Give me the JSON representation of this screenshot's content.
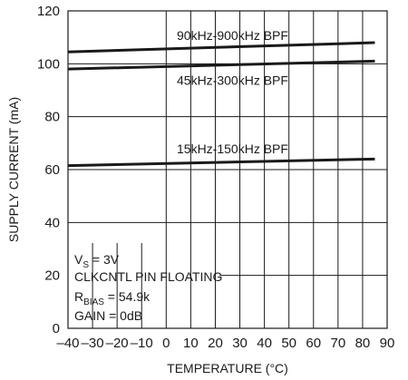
{
  "chart_data": {
    "type": "line",
    "xlabel": "TEMPERATURE (°C)",
    "ylabel": "SUPPLY CURRENT (mA)",
    "xlim": [
      -40,
      90
    ],
    "ylim": [
      0,
      120
    ],
    "grid": true,
    "x_ticks": [
      -40,
      -30,
      -20,
      -10,
      0,
      10,
      20,
      30,
      40,
      50,
      60,
      70,
      80,
      90
    ],
    "x_tick_labels": [
      "–40",
      "–30",
      "–20",
      "–10",
      "0",
      "10",
      "20",
      "30",
      "40",
      "50",
      "60",
      "70",
      "80",
      "90"
    ],
    "y_ticks": [
      0,
      20,
      40,
      60,
      80,
      100,
      120
    ],
    "y_tick_labels": [
      "0",
      "20",
      "40",
      "60",
      "80",
      "100",
      "120"
    ],
    "series": [
      {
        "name": "90kHz-900kHz BPF",
        "x": [
          -40,
          85
        ],
        "values": [
          104.5,
          108
        ]
      },
      {
        "name": "45kHz-300kHz BPF",
        "x": [
          -40,
          85
        ],
        "values": [
          98,
          101
        ]
      },
      {
        "name": "15kHz-150kHz BPF",
        "x": [
          -40,
          85
        ],
        "values": [
          61.5,
          64
        ]
      }
    ],
    "annotations": [
      {
        "main": "V",
        "sub": "S",
        "rest": " = 3V"
      },
      {
        "main": "CLKCNTL PIN FLOATING",
        "sub": "",
        "rest": ""
      },
      {
        "main": "R",
        "sub": "BIAS",
        "rest": " = 54.9k"
      },
      {
        "main": "GAIN = 0dB",
        "sub": "",
        "rest": ""
      }
    ]
  }
}
